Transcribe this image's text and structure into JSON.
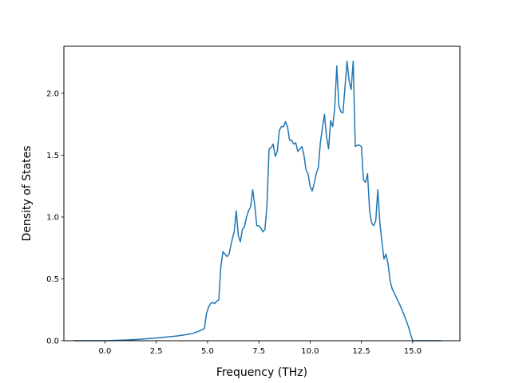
{
  "chart_data": {
    "type": "line",
    "title": "",
    "xlabel": "Frequency (THz)",
    "ylabel": "Density of States",
    "xlim": [
      -2.0,
      17.3
    ],
    "ylim": [
      0.0,
      2.38
    ],
    "xticks": [
      0.0,
      2.5,
      5.0,
      7.5,
      10.0,
      12.5,
      15.0
    ],
    "xtick_labels": [
      "0.0",
      "2.5",
      "5.0",
      "7.5",
      "10.0",
      "12.5",
      "15.0"
    ],
    "yticks": [
      0.0,
      0.5,
      1.0,
      1.5,
      2.0
    ],
    "ytick_labels": [
      "0.0",
      "0.5",
      "1.0",
      "1.5",
      "2.0"
    ],
    "grid": false,
    "legend": "none",
    "series": [
      {
        "color": "#1f77b4",
        "x": [
          -1.5,
          -0.5,
          0.0,
          0.5,
          1.0,
          1.5,
          2.0,
          2.5,
          3.0,
          3.5,
          4.0,
          4.3,
          4.5,
          4.7,
          4.85,
          4.95,
          5.05,
          5.15,
          5.25,
          5.35,
          5.45,
          5.55,
          5.65,
          5.75,
          5.85,
          5.95,
          6.05,
          6.15,
          6.25,
          6.3,
          6.4,
          6.5,
          6.6,
          6.7,
          6.8,
          6.9,
          7.0,
          7.1,
          7.2,
          7.3,
          7.4,
          7.5,
          7.6,
          7.7,
          7.8,
          7.9,
          8.0,
          8.1,
          8.2,
          8.3,
          8.4,
          8.5,
          8.6,
          8.7,
          8.8,
          8.9,
          9.0,
          9.1,
          9.2,
          9.3,
          9.4,
          9.5,
          9.6,
          9.7,
          9.8,
          9.9,
          10.0,
          10.1,
          10.2,
          10.3,
          10.4,
          10.5,
          10.6,
          10.7,
          10.8,
          10.9,
          11.0,
          11.1,
          11.2,
          11.3,
          11.4,
          11.5,
          11.6,
          11.7,
          11.8,
          11.9,
          12.0,
          12.1,
          12.2,
          12.3,
          12.4,
          12.5,
          12.6,
          12.7,
          12.8,
          12.9,
          13.0,
          13.1,
          13.2,
          13.3,
          13.4,
          13.5,
          13.6,
          13.7,
          13.8,
          13.9,
          14.0,
          14.2,
          14.4,
          14.6,
          14.8,
          14.9,
          15.0,
          15.1,
          15.3,
          15.6,
          16.0,
          16.4
        ],
        "y": [
          0.0,
          0.0,
          0.0,
          0.003,
          0.006,
          0.01,
          0.015,
          0.022,
          0.03,
          0.038,
          0.05,
          0.06,
          0.072,
          0.085,
          0.1,
          0.22,
          0.27,
          0.3,
          0.31,
          0.3,
          0.32,
          0.33,
          0.6,
          0.72,
          0.7,
          0.68,
          0.7,
          0.78,
          0.85,
          0.88,
          1.05,
          0.85,
          0.8,
          0.9,
          0.92,
          1.0,
          1.05,
          1.08,
          1.22,
          1.1,
          0.93,
          0.93,
          0.91,
          0.88,
          0.9,
          1.1,
          1.55,
          1.56,
          1.59,
          1.49,
          1.53,
          1.7,
          1.73,
          1.73,
          1.77,
          1.73,
          1.62,
          1.62,
          1.59,
          1.6,
          1.53,
          1.55,
          1.57,
          1.5,
          1.38,
          1.35,
          1.25,
          1.21,
          1.27,
          1.35,
          1.4,
          1.6,
          1.72,
          1.83,
          1.65,
          1.55,
          1.78,
          1.73,
          1.88,
          2.22,
          1.9,
          1.85,
          1.84,
          2.05,
          2.26,
          2.1,
          2.03,
          2.26,
          1.57,
          1.58,
          1.58,
          1.57,
          1.3,
          1.28,
          1.35,
          1.05,
          0.95,
          0.93,
          0.97,
          1.22,
          0.95,
          0.8,
          0.66,
          0.7,
          0.62,
          0.48,
          0.42,
          0.35,
          0.28,
          0.2,
          0.11,
          0.05,
          0.0,
          0.0,
          0.0,
          0.0,
          0.0,
          0.0
        ]
      }
    ]
  }
}
